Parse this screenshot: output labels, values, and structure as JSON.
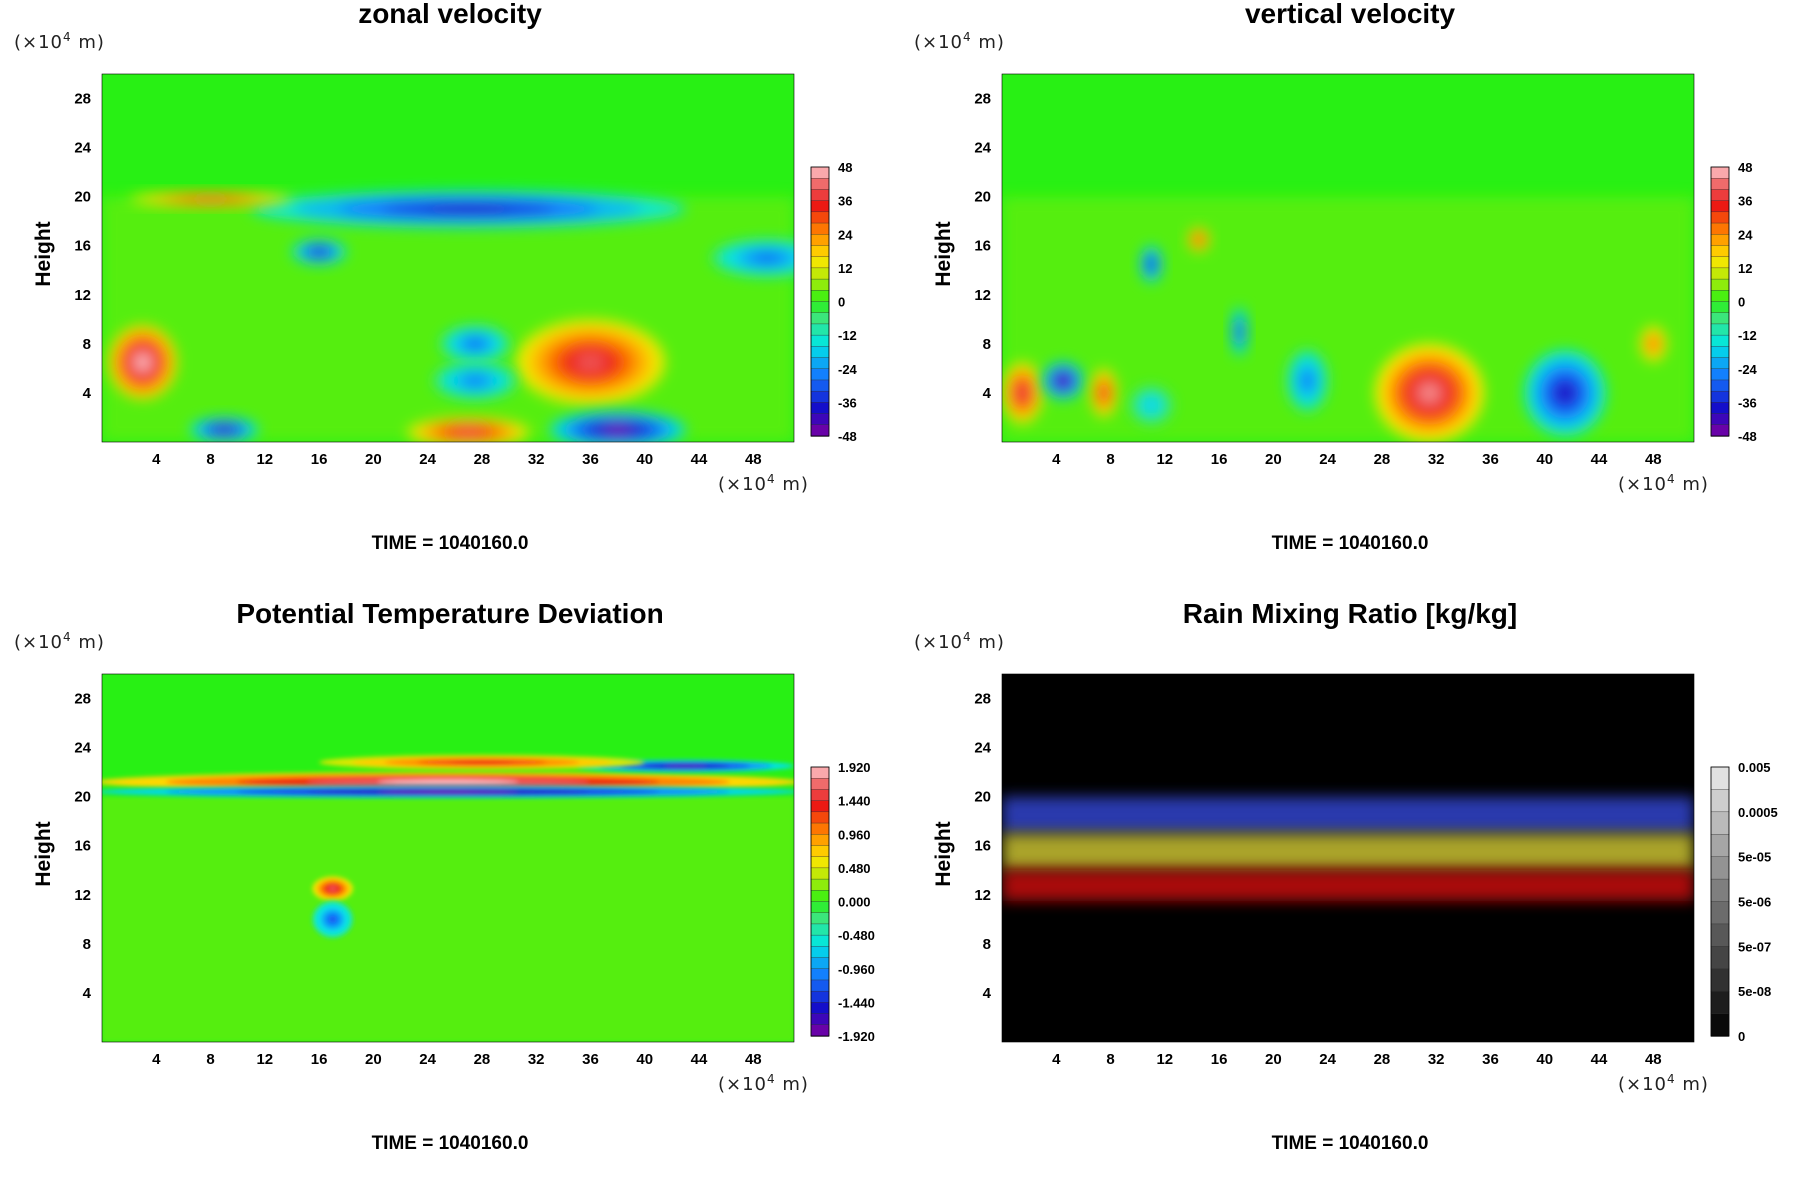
{
  "figure": {
    "panels": [
      {
        "title": "zonal velocity",
        "ylabel": "Height",
        "y_unit": "(×10",
        "x_unit": "(×10",
        "exp": "4",
        "unit_tail": " m)",
        "time": "TIME = 1040160.0"
      },
      {
        "title": "vertical velocity",
        "ylabel": "Height",
        "y_unit": "(×10",
        "x_unit": "(×10",
        "exp": "4",
        "unit_tail": " m)",
        "time": "TIME = 1040160.0"
      },
      {
        "title": "Potential Temperature Deviation",
        "ylabel": "Height",
        "y_unit": "(×10",
        "x_unit": "(×10",
        "exp": "4",
        "unit_tail": " m)",
        "time": "TIME = 1040160.0"
      },
      {
        "title": "Rain Mixing Ratio [kg/kg]",
        "ylabel": "Height",
        "y_unit": "(×10",
        "x_unit": "(×10",
        "exp": "4",
        "unit_tail": " m)",
        "time": "TIME = 1040160.0"
      }
    ]
  },
  "chart_data": [
    {
      "type": "heatmap",
      "title": "zonal velocity",
      "xlabel": "(×10^4 m)",
      "ylabel": "Height",
      "x_ticks": [
        4,
        8,
        12,
        16,
        20,
        24,
        28,
        32,
        36,
        40,
        44,
        48
      ],
      "y_ticks": [
        4,
        8,
        12,
        16,
        20,
        24,
        28
      ],
      "xlim": [
        0,
        51
      ],
      "ylim": [
        0,
        30
      ],
      "colorbar": {
        "labels": [
          "48",
          "36",
          "24",
          "12",
          "0",
          "-12",
          "-24",
          "-36",
          "-48"
        ],
        "range": [
          -48,
          48
        ],
        "scheme": "rainbow"
      },
      "time": "TIME = 1040160.0",
      "features": [
        {
          "x": 36,
          "y": 6.5,
          "value": 40,
          "rx": 5.5,
          "ry": 3.5
        },
        {
          "x": 3,
          "y": 6.5,
          "value": 48,
          "rx": 2.5,
          "ry": 3
        },
        {
          "x": 27,
          "y": 0.8,
          "value": 40,
          "rx": 4.5,
          "ry": 1.2
        },
        {
          "x": 38,
          "y": 1.0,
          "value": -48,
          "rx": 5,
          "ry": 1.5
        },
        {
          "x": 9,
          "y": 1.0,
          "value": -44,
          "rx": 2.5,
          "ry": 1
        },
        {
          "x": 27,
          "y": 19,
          "value": -40,
          "rx": 16,
          "ry": 1.5
        },
        {
          "x": 16,
          "y": 15.5,
          "value": -40,
          "rx": 2,
          "ry": 1
        },
        {
          "x": 27.5,
          "y": 8,
          "value": -30,
          "rx": 2.5,
          "ry": 1.5
        },
        {
          "x": 27.5,
          "y": 5,
          "value": -28,
          "rx": 3,
          "ry": 1.5
        },
        {
          "x": 49,
          "y": 15,
          "value": -30,
          "rx": 4,
          "ry": 1.5
        },
        {
          "x": 8,
          "y": 19.8,
          "value": 36,
          "rx": 6,
          "ry": 0.6
        }
      ]
    },
    {
      "type": "heatmap",
      "title": "vertical velocity",
      "xlabel": "(×10^4 m)",
      "ylabel": "Height",
      "x_ticks": [
        4,
        8,
        12,
        16,
        20,
        24,
        28,
        32,
        36,
        40,
        44,
        48
      ],
      "y_ticks": [
        4,
        8,
        12,
        16,
        20,
        24,
        28
      ],
      "xlim": [
        0,
        51
      ],
      "ylim": [
        0,
        30
      ],
      "colorbar": {
        "labels": [
          "48",
          "36",
          "24",
          "12",
          "0",
          "-12",
          "-24",
          "-36",
          "-48"
        ],
        "range": [
          -48,
          48
        ],
        "scheme": "rainbow"
      },
      "time": "TIME = 1040160.0",
      "features": [
        {
          "x": 31.5,
          "y": 4,
          "value": 44,
          "rx": 4,
          "ry": 4
        },
        {
          "x": 41.5,
          "y": 4,
          "value": -40,
          "rx": 3,
          "ry": 3.5
        },
        {
          "x": 1.5,
          "y": 4,
          "value": 40,
          "rx": 1.5,
          "ry": 2.5
        },
        {
          "x": 4.5,
          "y": 5,
          "value": -48,
          "rx": 1.5,
          "ry": 1.5
        },
        {
          "x": 7.5,
          "y": 4,
          "value": 36,
          "rx": 1,
          "ry": 2
        },
        {
          "x": 22.5,
          "y": 5,
          "value": -28,
          "rx": 1.5,
          "ry": 2.5
        },
        {
          "x": 11,
          "y": 3,
          "value": -20,
          "rx": 1.5,
          "ry": 1.5
        },
        {
          "x": 11,
          "y": 14.5,
          "value": -40,
          "rx": 0.8,
          "ry": 1.5
        },
        {
          "x": 14.5,
          "y": 16.5,
          "value": 36,
          "rx": 0.8,
          "ry": 1
        },
        {
          "x": 17.5,
          "y": 9,
          "value": -36,
          "rx": 0.6,
          "ry": 2
        },
        {
          "x": 48,
          "y": 8,
          "value": 30,
          "rx": 1,
          "ry": 1.5
        }
      ]
    },
    {
      "type": "heatmap",
      "title": "Potential Temperature Deviation",
      "xlabel": "(×10^4 m)",
      "ylabel": "Height",
      "x_ticks": [
        4,
        8,
        12,
        16,
        20,
        24,
        28,
        32,
        36,
        40,
        44,
        48
      ],
      "y_ticks": [
        4,
        8,
        12,
        16,
        20,
        24,
        28
      ],
      "xlim": [
        0,
        51
      ],
      "ylim": [
        0,
        30
      ],
      "colorbar": {
        "labels": [
          "1.920",
          "1.440",
          "0.960",
          "0.480",
          "0.000",
          "-0.480",
          "-0.960",
          "-1.440",
          "-1.920"
        ],
        "range": [
          -1.92,
          1.92
        ],
        "scheme": "rainbow"
      },
      "time": "TIME = 1040160.0",
      "features": [
        {
          "x": 25.5,
          "y": 21.2,
          "value": 1.92,
          "rx": 26,
          "ry": 0.8
        },
        {
          "x": 25.5,
          "y": 20.4,
          "value": -1.92,
          "rx": 26,
          "ry": 0.5
        },
        {
          "x": 43,
          "y": 22.5,
          "value": -1.8,
          "rx": 8,
          "ry": 0.5
        },
        {
          "x": 28,
          "y": 22.8,
          "value": 1.4,
          "rx": 12,
          "ry": 0.6
        },
        {
          "x": 17,
          "y": 12.5,
          "value": 1.6,
          "rx": 1.5,
          "ry": 1
        },
        {
          "x": 17,
          "y": 10,
          "value": -1.2,
          "rx": 1.5,
          "ry": 1.5
        }
      ]
    },
    {
      "type": "heatmap",
      "title": "Rain Mixing Ratio [kg/kg]",
      "xlabel": "(×10^4 m)",
      "ylabel": "Height",
      "x_ticks": [
        4,
        8,
        12,
        16,
        20,
        24,
        28,
        32,
        36,
        40,
        44,
        48
      ],
      "y_ticks": [
        4,
        8,
        12,
        16,
        20,
        24,
        28
      ],
      "xlim": [
        0,
        51
      ],
      "ylim": [
        0,
        30
      ],
      "colorbar": {
        "labels": [
          "0.005",
          "0.0005",
          "5e-05",
          "5e-06",
          "5e-07",
          "5e-08",
          "0"
        ],
        "scheme": "grayscale"
      },
      "time": "TIME = 1040160.0",
      "layers": [
        {
          "name": "blue",
          "y_range": [
            17,
            20
          ],
          "color": "#3344cc"
        },
        {
          "name": "yellow",
          "y_range": [
            14,
            17
          ],
          "color": "#c8c030"
        },
        {
          "name": "red",
          "y_range": [
            11.5,
            14
          ],
          "color": "#c81010"
        }
      ]
    }
  ]
}
